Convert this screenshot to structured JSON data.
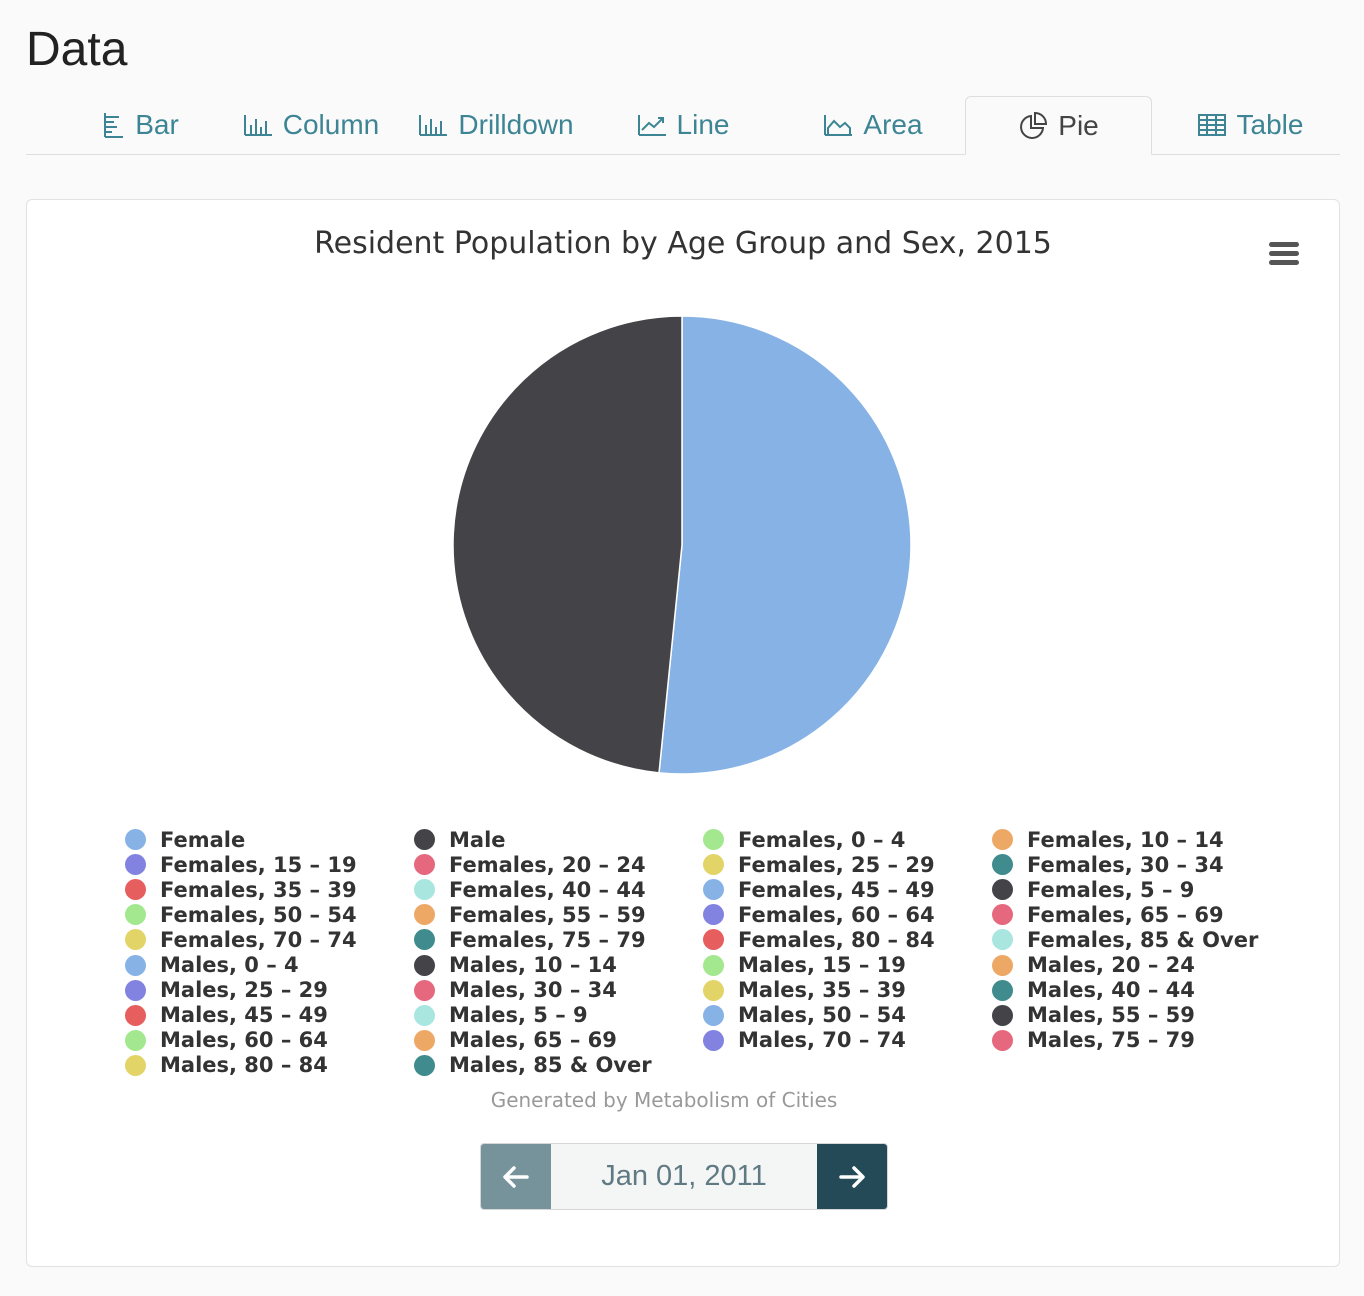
{
  "page": {
    "title": "Data"
  },
  "tabs": [
    {
      "label": "Bar",
      "icon": "bar-chart-icon",
      "active": false
    },
    {
      "label": "Column",
      "icon": "column-chart-icon",
      "active": false
    },
    {
      "label": "Drilldown",
      "icon": "drilldown-chart-icon",
      "active": false
    },
    {
      "label": "Line",
      "icon": "line-chart-icon",
      "active": false
    },
    {
      "label": "Area",
      "icon": "area-chart-icon",
      "active": false
    },
    {
      "label": "Pie",
      "icon": "pie-chart-icon",
      "active": true
    },
    {
      "label": "Table",
      "icon": "table-icon",
      "active": false
    }
  ],
  "colors": {
    "tab_accent": "#3d8594",
    "nav_prev": "#76929b",
    "nav_next": "#234a56"
  },
  "chart_data": {
    "type": "pie",
    "title": "Resident Population by Age Group and Sex, 2015",
    "slices": [
      {
        "name": "Female",
        "value": 51.6,
        "color": "#87b2e6"
      },
      {
        "name": "Male",
        "value": 48.4,
        "color": "#434348"
      }
    ],
    "legend": {
      "placement": "bottom",
      "items": [
        {
          "name": "Female",
          "color": "#87b2e6"
        },
        {
          "name": "Male",
          "color": "#434348"
        },
        {
          "name": "Females, 0 – 4",
          "color": "#a3e88e"
        },
        {
          "name": "Females, 10 – 14",
          "color": "#eda866"
        },
        {
          "name": "Females, 15 – 19",
          "color": "#8282e0"
        },
        {
          "name": "Females, 20 – 24",
          "color": "#e6687f"
        },
        {
          "name": "Females, 25 – 29",
          "color": "#e2d466"
        },
        {
          "name": "Females, 30 – 34",
          "color": "#3f8b8d"
        },
        {
          "name": "Females, 35 – 39",
          "color": "#e65e5e"
        },
        {
          "name": "Females, 40 – 44",
          "color": "#a9e6e0"
        },
        {
          "name": "Females, 45 – 49",
          "color": "#87b2e6"
        },
        {
          "name": "Females, 5 – 9",
          "color": "#434348"
        },
        {
          "name": "Females, 50 – 54",
          "color": "#a3e88e"
        },
        {
          "name": "Females, 55 – 59",
          "color": "#eda866"
        },
        {
          "name": "Females, 60 – 64",
          "color": "#8282e0"
        },
        {
          "name": "Females, 65 – 69",
          "color": "#e6687f"
        },
        {
          "name": "Females, 70 – 74",
          "color": "#e2d466"
        },
        {
          "name": "Females, 75 – 79",
          "color": "#3f8b8d"
        },
        {
          "name": "Females, 80 – 84",
          "color": "#e65e5e"
        },
        {
          "name": "Females, 85 & Over",
          "color": "#a9e6e0"
        },
        {
          "name": "Males, 0 – 4",
          "color": "#87b2e6"
        },
        {
          "name": "Males, 10 – 14",
          "color": "#434348"
        },
        {
          "name": "Males, 15 – 19",
          "color": "#a3e88e"
        },
        {
          "name": "Males, 20 – 24",
          "color": "#eda866"
        },
        {
          "name": "Males, 25 – 29",
          "color": "#8282e0"
        },
        {
          "name": "Males, 30 – 34",
          "color": "#e6687f"
        },
        {
          "name": "Males, 35 – 39",
          "color": "#e2d466"
        },
        {
          "name": "Males, 40 – 44",
          "color": "#3f8b8d"
        },
        {
          "name": "Males, 45 – 49",
          "color": "#e65e5e"
        },
        {
          "name": "Males, 5 – 9",
          "color": "#a9e6e0"
        },
        {
          "name": "Males, 50 – 54",
          "color": "#87b2e6"
        },
        {
          "name": "Males, 55 – 59",
          "color": "#434348"
        },
        {
          "name": "Males, 60 – 64",
          "color": "#a3e88e"
        },
        {
          "name": "Males, 65 – 69",
          "color": "#eda866"
        },
        {
          "name": "Males, 70 – 74",
          "color": "#8282e0"
        },
        {
          "name": "Males, 75 – 79",
          "color": "#e6687f"
        },
        {
          "name": "Males, 80 – 84",
          "color": "#e2d466"
        },
        {
          "name": "Males, 85 & Over",
          "color": "#3f8b8d"
        }
      ]
    },
    "credits": "Generated by Metabolism of Cities"
  },
  "date_nav": {
    "current_date": "Jan 01, 2011",
    "prev_icon": "arrow-left-icon",
    "next_icon": "arrow-right-icon"
  }
}
